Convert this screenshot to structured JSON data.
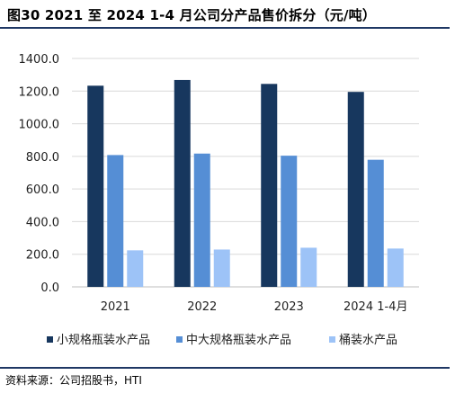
{
  "title": "图30  2021 至 2024 1-4 月公司分产品售价拆分（元/吨）",
  "source": "资料来源：公司招股书，HTI",
  "chart_data": {
    "type": "bar",
    "categories": [
      "2021",
      "2022",
      "2023",
      "2024 1-4月"
    ],
    "series": [
      {
        "name": "小规格瓶装水产品",
        "color": "#17375e",
        "values": [
          1233,
          1268,
          1244,
          1195
        ]
      },
      {
        "name": "中大规格瓶装水产品",
        "color": "#558ed5",
        "values": [
          808,
          817,
          804,
          779
        ]
      },
      {
        "name": "桶装水产品",
        "color": "#9dc3f7",
        "values": [
          224,
          229,
          240,
          235
        ]
      }
    ],
    "yticks": [
      "0.0",
      "200.0",
      "400.0",
      "600.0",
      "800.0",
      "1000.0",
      "1200.0",
      "1400.0"
    ],
    "ylim": [
      0,
      1400
    ],
    "grid": true,
    "legend": "bottom"
  }
}
